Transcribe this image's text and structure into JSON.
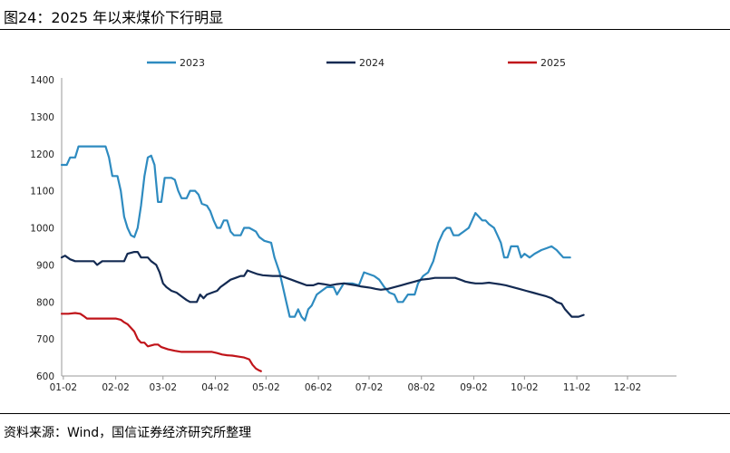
{
  "figure_title": "图24：2025 年以来煤价下行明显",
  "source_note": "资料来源：Wind，国信证券经济研究所整理",
  "chart_data": {
    "type": "line",
    "title": "",
    "xlabel": "",
    "ylabel": "",
    "ylim": [
      600,
      1400
    ],
    "yticks": [
      600,
      700,
      800,
      900,
      1000,
      1100,
      1200,
      1300,
      1400
    ],
    "xlim": [
      1,
      365
    ],
    "xticks": [
      {
        "label": "01-02",
        "day": 2
      },
      {
        "label": "02-02",
        "day": 33
      },
      {
        "label": "03-02",
        "day": 61
      },
      {
        "label": "04-02",
        "day": 92
      },
      {
        "label": "05-02",
        "day": 122
      },
      {
        "label": "06-02",
        "day": 153
      },
      {
        "label": "07-02",
        "day": 183
      },
      {
        "label": "08-02",
        "day": 214
      },
      {
        "label": "09-02",
        "day": 245
      },
      {
        "label": "10-02",
        "day": 275
      },
      {
        "label": "11-02",
        "day": 306
      },
      {
        "label": "12-02",
        "day": 336
      }
    ],
    "grid": false,
    "legend_position": "top",
    "series": [
      {
        "name": "2023",
        "color": "#2e8bc0",
        "points": [
          [
            1,
            1170
          ],
          [
            4,
            1170
          ],
          [
            6,
            1190
          ],
          [
            9,
            1190
          ],
          [
            11,
            1220
          ],
          [
            18,
            1220
          ],
          [
            22,
            1220
          ],
          [
            27,
            1220
          ],
          [
            29,
            1190
          ],
          [
            31,
            1140
          ],
          [
            34,
            1140
          ],
          [
            36,
            1100
          ],
          [
            38,
            1030
          ],
          [
            40,
            1000
          ],
          [
            42,
            980
          ],
          [
            44,
            975
          ],
          [
            46,
            1000
          ],
          [
            48,
            1060
          ],
          [
            50,
            1140
          ],
          [
            52,
            1190
          ],
          [
            54,
            1195
          ],
          [
            56,
            1170
          ],
          [
            58,
            1070
          ],
          [
            60,
            1070
          ],
          [
            62,
            1135
          ],
          [
            66,
            1135
          ],
          [
            68,
            1130
          ],
          [
            70,
            1100
          ],
          [
            72,
            1080
          ],
          [
            75,
            1080
          ],
          [
            77,
            1100
          ],
          [
            80,
            1100
          ],
          [
            82,
            1090
          ],
          [
            84,
            1065
          ],
          [
            87,
            1060
          ],
          [
            89,
            1045
          ],
          [
            91,
            1020
          ],
          [
            93,
            1000
          ],
          [
            95,
            1000
          ],
          [
            97,
            1020
          ],
          [
            99,
            1020
          ],
          [
            101,
            990
          ],
          [
            103,
            980
          ],
          [
            107,
            980
          ],
          [
            109,
            1000
          ],
          [
            112,
            1000
          ],
          [
            114,
            995
          ],
          [
            116,
            990
          ],
          [
            118,
            975
          ],
          [
            121,
            965
          ],
          [
            125,
            960
          ],
          [
            127,
            920
          ],
          [
            130,
            880
          ],
          [
            132,
            840
          ],
          [
            134,
            800
          ],
          [
            136,
            760
          ],
          [
            139,
            760
          ],
          [
            141,
            780
          ],
          [
            143,
            760
          ],
          [
            145,
            750
          ],
          [
            147,
            780
          ],
          [
            149,
            790
          ],
          [
            152,
            820
          ],
          [
            155,
            830
          ],
          [
            158,
            840
          ],
          [
            162,
            840
          ],
          [
            164,
            820
          ],
          [
            168,
            850
          ],
          [
            173,
            850
          ],
          [
            177,
            845
          ],
          [
            180,
            880
          ],
          [
            183,
            875
          ],
          [
            186,
            870
          ],
          [
            189,
            860
          ],
          [
            192,
            840
          ],
          [
            195,
            825
          ],
          [
            198,
            820
          ],
          [
            200,
            800
          ],
          [
            203,
            800
          ],
          [
            206,
            820
          ],
          [
            210,
            820
          ],
          [
            212,
            850
          ],
          [
            215,
            870
          ],
          [
            218,
            880
          ],
          [
            221,
            910
          ],
          [
            224,
            960
          ],
          [
            227,
            990
          ],
          [
            229,
            1000
          ],
          [
            231,
            1000
          ],
          [
            233,
            980
          ],
          [
            236,
            980
          ],
          [
            239,
            990
          ],
          [
            242,
            1000
          ],
          [
            244,
            1020
          ],
          [
            246,
            1040
          ],
          [
            248,
            1030
          ],
          [
            250,
            1020
          ],
          [
            252,
            1020
          ],
          [
            254,
            1010
          ],
          [
            257,
            1000
          ],
          [
            259,
            980
          ],
          [
            261,
            960
          ],
          [
            263,
            920
          ],
          [
            265,
            920
          ],
          [
            267,
            950
          ],
          [
            271,
            950
          ],
          [
            273,
            920
          ],
          [
            275,
            930
          ],
          [
            278,
            920
          ],
          [
            281,
            930
          ],
          [
            285,
            940
          ],
          [
            288,
            945
          ],
          [
            291,
            950
          ],
          [
            294,
            940
          ],
          [
            296,
            930
          ],
          [
            298,
            920
          ],
          [
            302,
            920
          ]
        ]
      },
      {
        "name": "2024",
        "color": "#132a52",
        "points": [
          [
            1,
            920
          ],
          [
            3,
            925
          ],
          [
            6,
            915
          ],
          [
            9,
            910
          ],
          [
            20,
            910
          ],
          [
            22,
            900
          ],
          [
            25,
            910
          ],
          [
            33,
            910
          ],
          [
            38,
            910
          ],
          [
            40,
            930
          ],
          [
            44,
            935
          ],
          [
            46,
            935
          ],
          [
            48,
            920
          ],
          [
            52,
            920
          ],
          [
            54,
            910
          ],
          [
            57,
            900
          ],
          [
            59,
            880
          ],
          [
            61,
            850
          ],
          [
            63,
            840
          ],
          [
            66,
            830
          ],
          [
            69,
            825
          ],
          [
            72,
            815
          ],
          [
            75,
            805
          ],
          [
            77,
            800
          ],
          [
            81,
            800
          ],
          [
            83,
            820
          ],
          [
            85,
            810
          ],
          [
            87,
            820
          ],
          [
            90,
            825
          ],
          [
            93,
            830
          ],
          [
            95,
            840
          ],
          [
            98,
            850
          ],
          [
            101,
            860
          ],
          [
            104,
            865
          ],
          [
            107,
            870
          ],
          [
            109,
            870
          ],
          [
            111,
            885
          ],
          [
            114,
            880
          ],
          [
            117,
            875
          ],
          [
            120,
            872
          ],
          [
            126,
            870
          ],
          [
            131,
            870
          ],
          [
            134,
            865
          ],
          [
            137,
            860
          ],
          [
            140,
            855
          ],
          [
            143,
            850
          ],
          [
            146,
            845
          ],
          [
            150,
            845
          ],
          [
            153,
            850
          ],
          [
            156,
            848
          ],
          [
            160,
            845
          ],
          [
            164,
            848
          ],
          [
            168,
            850
          ],
          [
            172,
            847
          ],
          [
            175,
            845
          ],
          [
            178,
            842
          ],
          [
            181,
            840
          ],
          [
            184,
            838
          ],
          [
            187,
            835
          ],
          [
            190,
            833
          ],
          [
            194,
            835
          ],
          [
            198,
            840
          ],
          [
            202,
            845
          ],
          [
            206,
            850
          ],
          [
            210,
            855
          ],
          [
            214,
            860
          ],
          [
            218,
            862
          ],
          [
            222,
            865
          ],
          [
            226,
            865
          ],
          [
            230,
            865
          ],
          [
            234,
            865
          ],
          [
            237,
            860
          ],
          [
            240,
            855
          ],
          [
            243,
            852
          ],
          [
            246,
            850
          ],
          [
            250,
            850
          ],
          [
            254,
            852
          ],
          [
            257,
            850
          ],
          [
            260,
            848
          ],
          [
            264,
            845
          ],
          [
            268,
            840
          ],
          [
            272,
            835
          ],
          [
            276,
            830
          ],
          [
            280,
            825
          ],
          [
            284,
            820
          ],
          [
            288,
            815
          ],
          [
            291,
            810
          ],
          [
            294,
            800
          ],
          [
            297,
            795
          ],
          [
            299,
            780
          ],
          [
            301,
            770
          ],
          [
            303,
            760
          ],
          [
            307,
            760
          ],
          [
            310,
            765
          ]
        ]
      },
      {
        "name": "2025",
        "color": "#c0141a",
        "points": [
          [
            1,
            768
          ],
          [
            5,
            768
          ],
          [
            9,
            770
          ],
          [
            12,
            768
          ],
          [
            14,
            762
          ],
          [
            16,
            755
          ],
          [
            20,
            755
          ],
          [
            28,
            755
          ],
          [
            33,
            755
          ],
          [
            36,
            752
          ],
          [
            38,
            745
          ],
          [
            40,
            740
          ],
          [
            42,
            730
          ],
          [
            44,
            720
          ],
          [
            46,
            700
          ],
          [
            48,
            690
          ],
          [
            50,
            690
          ],
          [
            52,
            680
          ],
          [
            56,
            685
          ],
          [
            58,
            685
          ],
          [
            60,
            678
          ],
          [
            64,
            672
          ],
          [
            68,
            668
          ],
          [
            72,
            665
          ],
          [
            76,
            665
          ],
          [
            83,
            665
          ],
          [
            90,
            665
          ],
          [
            93,
            662
          ],
          [
            96,
            658
          ],
          [
            99,
            656
          ],
          [
            102,
            655
          ],
          [
            106,
            652
          ],
          [
            109,
            650
          ],
          [
            112,
            645
          ],
          [
            114,
            630
          ],
          [
            116,
            620
          ],
          [
            118,
            615
          ],
          [
            119,
            613
          ]
        ]
      }
    ]
  }
}
